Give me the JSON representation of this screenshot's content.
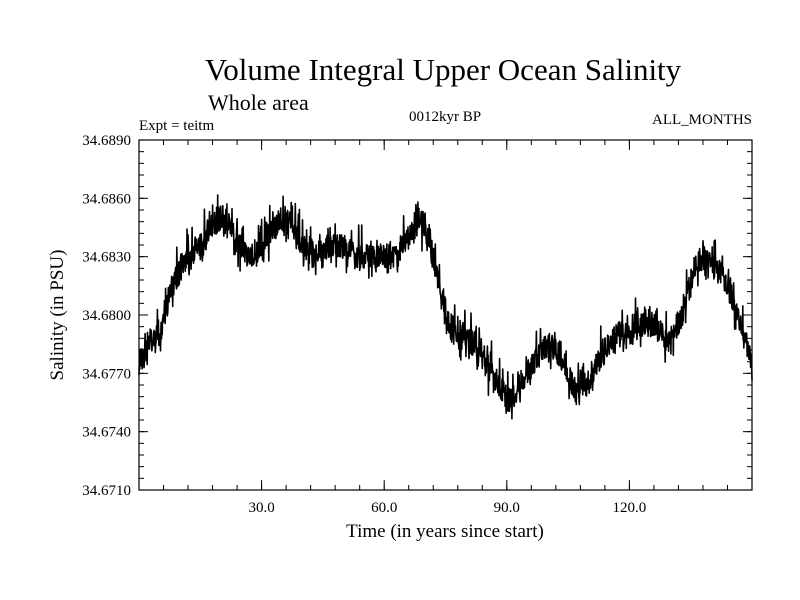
{
  "chart_data": {
    "type": "line",
    "title": "Volume Integral Upper Ocean Salinity",
    "subtitle": "Whole area",
    "experiment_label": "Expt = teitm",
    "period_label": "0012kyr BP",
    "months_label": "ALL_MONTHS",
    "xlabel": "Time (in years since start)",
    "ylabel": "Salinity (in PSU)",
    "xlim": [
      0,
      150
    ],
    "ylim": [
      34.671,
      34.689
    ],
    "x_ticks": [
      30,
      60,
      90,
      120
    ],
    "x_tick_labels": [
      "30.0",
      "60.0",
      "90.0",
      "120.0"
    ],
    "y_ticks": [
      34.671,
      34.674,
      34.677,
      34.68,
      34.683,
      34.686,
      34.689
    ],
    "y_tick_labels": [
      "34.6710",
      "34.6740",
      "34.6770",
      "34.6800",
      "34.6830",
      "34.6860",
      "34.6890"
    ],
    "grid": false,
    "series": [
      {
        "name": "Salinity",
        "color": "#000000",
        "noise_amplitude": 0.0013,
        "x": [
          0,
          2,
          5,
          8,
          12,
          15,
          18,
          20,
          22,
          25,
          27,
          30,
          33,
          35,
          38,
          40,
          43,
          46,
          50,
          53,
          56,
          60,
          63,
          66,
          68,
          70,
          72,
          74,
          76,
          79,
          82,
          85,
          88,
          90,
          92,
          95,
          98,
          100,
          103,
          105,
          107,
          108,
          110,
          112,
          115,
          118,
          120,
          123,
          126,
          128,
          130,
          133,
          136,
          138,
          140,
          143,
          145,
          148,
          150
        ],
        "y": [
          34.6775,
          34.6785,
          34.679,
          34.6815,
          34.683,
          34.6835,
          34.6845,
          34.685,
          34.6845,
          34.6835,
          34.683,
          34.6835,
          34.6845,
          34.685,
          34.6845,
          34.6835,
          34.683,
          34.6835,
          34.6835,
          34.683,
          34.683,
          34.683,
          34.683,
          34.684,
          34.685,
          34.6845,
          34.683,
          34.681,
          34.6795,
          34.679,
          34.6785,
          34.6775,
          34.6765,
          34.6755,
          34.676,
          34.677,
          34.678,
          34.6785,
          34.678,
          34.677,
          34.676,
          34.6765,
          34.6765,
          34.6775,
          34.6785,
          34.679,
          34.679,
          34.6795,
          34.6795,
          34.679,
          34.6785,
          34.68,
          34.6825,
          34.683,
          34.6825,
          34.682,
          34.681,
          34.679,
          34.6775
        ]
      }
    ]
  }
}
